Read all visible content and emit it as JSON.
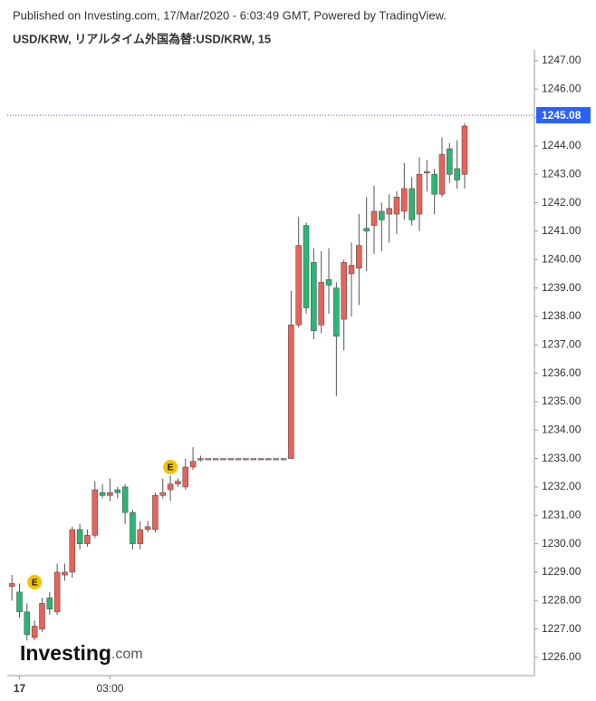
{
  "chart_data": {
    "type": "candlestick",
    "header": "Published on Investing.com, 17/Mar/2020 - 6:03:49 GMT, Powered by TradingView.",
    "title": "USD/KRW, リアルタイム外国為替:USD/KRW, 15",
    "logo": "Investing",
    "logo_suffix": ".com",
    "up_color": "#e8625a",
    "down_color": "#2bb673",
    "price_line_color": "#2962ff",
    "last_price": {
      "value": 1245.08,
      "label": "1245.08"
    },
    "categories": [
      null,
      "17",
      null,
      null,
      null,
      null,
      null,
      null,
      null,
      null,
      null,
      null,
      null,
      "03:00",
      null,
      null,
      null,
      null,
      null,
      null,
      null,
      null,
      null,
      null,
      null,
      null,
      null,
      null,
      null,
      null,
      null,
      null,
      null,
      null,
      null,
      null,
      null,
      null,
      null,
      null,
      null,
      null,
      null,
      null,
      null,
      null,
      null,
      null,
      null,
      null,
      null,
      null,
      null,
      null,
      null,
      null,
      null,
      null,
      null,
      null,
      null
    ],
    "open": [
      1228.5,
      1228.3,
      1227.6,
      1226.7,
      1227.0,
      1228.1,
      1227.6,
      1228.9,
      1229.0,
      1230.5,
      1230.0,
      1230.3,
      1231.8,
      1231.7,
      1231.9,
      1232.0,
      1231.1,
      1230.0,
      1230.5,
      1230.5,
      1231.7,
      1231.9,
      1232.1,
      1232.0,
      1232.7,
      1232.95,
      1233.0,
      1233.0,
      1233.0,
      1233.0,
      1233.0,
      1233.0,
      1233.0,
      1233.0,
      1233.0,
      1233.0,
      1233.0,
      1233.0,
      1237.7,
      1241.2,
      1239.9,
      1237.7,
      1239.3,
      1239.0,
      1237.9,
      1239.5,
      1239.7,
      1241.1,
      1241.2,
      1241.7,
      1241.6,
      1241.6,
      1241.7,
      1242.5,
      1241.6,
      1243.05,
      1243.0,
      1242.3,
      1243.9,
      1243.2,
      1243.0
    ],
    "high": [
      1228.9,
      1228.6,
      1227.9,
      1227.3,
      1228.1,
      1228.3,
      1229.3,
      1229.3,
      1230.6,
      1230.7,
      1230.5,
      1232.2,
      1232.1,
      1232.3,
      1232.0,
      1232.1,
      1231.2,
      1230.8,
      1230.8,
      1231.8,
      1232.3,
      1232.4,
      1232.3,
      1233.0,
      1233.4,
      1233.1,
      1233.0,
      1233.0,
      1233.0,
      1233.0,
      1233.0,
      1233.0,
      1233.0,
      1233.0,
      1233.0,
      1233.0,
      1233.0,
      1238.9,
      1241.5,
      1241.3,
      1240.4,
      1240.3,
      1240.4,
      1239.2,
      1240.0,
      1240.6,
      1241.6,
      1242.2,
      1242.6,
      1242.0,
      1242.3,
      1242.4,
      1243.4,
      1242.9,
      1243.6,
      1243.5,
      1243.2,
      1244.3,
      1244.1,
      1244.2,
      1244.8
    ],
    "low": [
      1228.0,
      1227.4,
      1226.6,
      1226.6,
      1226.9,
      1227.5,
      1227.5,
      1228.7,
      1228.8,
      1229.8,
      1229.9,
      1230.2,
      1231.6,
      1231.5,
      1231.6,
      1230.7,
      1229.8,
      1229.8,
      1230.4,
      1230.4,
      1231.6,
      1231.5,
      1232.0,
      1231.9,
      1232.6,
      1232.9,
      1233.0,
      1233.0,
      1233.0,
      1233.0,
      1233.0,
      1233.0,
      1233.0,
      1233.0,
      1233.0,
      1233.0,
      1233.0,
      1233.0,
      1237.6,
      1238.1,
      1237.2,
      1237.4,
      1238.1,
      1235.2,
      1236.8,
      1238.0,
      1238.4,
      1239.6,
      1240.2,
      1240.3,
      1240.6,
      1240.9,
      1241.4,
      1241.2,
      1241.0,
      1242.4,
      1241.6,
      1242.2,
      1242.7,
      1242.5,
      1242.5
    ],
    "close": [
      1228.6,
      1227.6,
      1226.8,
      1227.1,
      1227.9,
      1227.7,
      1229.0,
      1229.0,
      1230.5,
      1230.0,
      1230.3,
      1231.9,
      1231.7,
      1231.8,
      1231.8,
      1231.1,
      1230.0,
      1230.5,
      1230.6,
      1231.7,
      1231.8,
      1232.1,
      1232.2,
      1232.7,
      1232.9,
      1233.0,
      1233.0,
      1233.0,
      1233.0,
      1233.0,
      1233.0,
      1233.0,
      1233.0,
      1233.0,
      1233.0,
      1233.0,
      1233.0,
      1237.7,
      1240.5,
      1238.3,
      1237.5,
      1239.2,
      1239.1,
      1237.3,
      1239.9,
      1239.8,
      1240.5,
      1241.0,
      1241.7,
      1241.4,
      1241.8,
      1242.2,
      1242.5,
      1241.4,
      1243.0,
      1243.1,
      1242.3,
      1243.7,
      1243.0,
      1242.8,
      1244.7
    ],
    "events": [
      {
        "index": 3,
        "label": "E",
        "value": 1228.65
      },
      {
        "index": 21,
        "label": "E",
        "value": 1232.7
      }
    ],
    "ylim": [
      1225.36,
      1247.38
    ],
    "yticks": [
      {
        "value": 1226,
        "label": "1226.00"
      },
      {
        "value": 1227,
        "label": "1227.00"
      },
      {
        "value": 1228,
        "label": "1228.00"
      },
      {
        "value": 1229,
        "label": "1229.00"
      },
      {
        "value": 1230,
        "label": "1230.00"
      },
      {
        "value": 1231,
        "label": "1231.00"
      },
      {
        "value": 1232,
        "label": "1232.00"
      },
      {
        "value": 1233,
        "label": "1233.00"
      },
      {
        "value": 1234,
        "label": "1234.00"
      },
      {
        "value": 1235,
        "label": "1235.00"
      },
      {
        "value": 1236,
        "label": "1236.00"
      },
      {
        "value": 1237,
        "label": "1237.00"
      },
      {
        "value": 1238,
        "label": "1238.00"
      },
      {
        "value": 1239,
        "label": "1239.00"
      },
      {
        "value": 1240,
        "label": "1240.00"
      },
      {
        "value": 1241,
        "label": "1241.00"
      },
      {
        "value": 1242,
        "label": "1242.00"
      },
      {
        "value": 1243,
        "label": "1243.00"
      },
      {
        "value": 1244,
        "label": "1244.00"
      },
      {
        "value": 1245,
        "label": "1245.00"
      },
      {
        "value": 1246,
        "label": "1246.00"
      },
      {
        "value": 1247,
        "label": "1247.00"
      }
    ]
  }
}
